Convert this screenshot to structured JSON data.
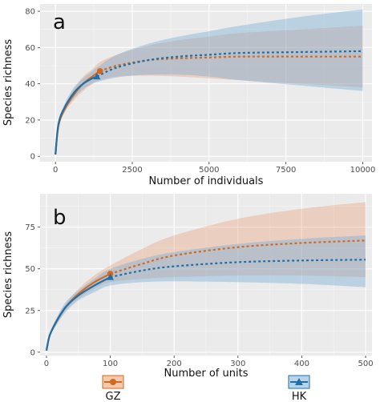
{
  "chart_data": [
    {
      "panel": "a",
      "type": "line",
      "xlabel": "Number of individuals",
      "ylabel": "Species richness",
      "xlim": [
        -500,
        10300
      ],
      "ylim": [
        -3,
        84
      ],
      "x_ticks": [
        0,
        2500,
        5000,
        7500,
        10000
      ],
      "y_ticks": [
        0,
        20,
        40,
        60,
        80
      ],
      "grid": true,
      "series": [
        {
          "name": "GZ",
          "color": "#D2691E",
          "observed_end_x": 1450,
          "observed_end_y": 47,
          "points": [
            [
              0,
              1
            ],
            [
              100,
              17
            ],
            [
              300,
              26
            ],
            [
              600,
              34
            ],
            [
              900,
              40
            ],
            [
              1200,
              44
            ],
            [
              1450,
              47
            ],
            [
              2000,
              50
            ],
            [
              3000,
              53
            ],
            [
              4000,
              54
            ],
            [
              5000,
              54.5
            ],
            [
              6000,
              55
            ],
            [
              8000,
              55
            ],
            [
              10000,
              55
            ]
          ],
          "ci_lower": [
            [
              0,
              1
            ],
            [
              100,
              16
            ],
            [
              300,
              24
            ],
            [
              600,
              31
            ],
            [
              900,
              36
            ],
            [
              1200,
              40
            ],
            [
              1450,
              42
            ],
            [
              2000,
              44
            ],
            [
              3000,
              44.5
            ],
            [
              4000,
              44
            ],
            [
              5000,
              43
            ],
            [
              6000,
              42
            ],
            [
              8000,
              40
            ],
            [
              10000,
              38
            ]
          ],
          "ci_upper": [
            [
              0,
              1
            ],
            [
              100,
              18
            ],
            [
              300,
              28
            ],
            [
              600,
              37
            ],
            [
              900,
              44
            ],
            [
              1200,
              48
            ],
            [
              1450,
              52
            ],
            [
              2000,
              56
            ],
            [
              3000,
              61
            ],
            [
              4000,
              64
            ],
            [
              5000,
              66
            ],
            [
              6000,
              68
            ],
            [
              8000,
              70
            ],
            [
              10000,
              72
            ]
          ]
        },
        {
          "name": "HK",
          "color": "#1F6FA8",
          "observed_end_x": 1350,
          "observed_end_y": 44,
          "points": [
            [
              0,
              1
            ],
            [
              100,
              18
            ],
            [
              300,
              27
            ],
            [
              600,
              35
            ],
            [
              900,
              40
            ],
            [
              1200,
              43
            ],
            [
              1350,
              44
            ],
            [
              2000,
              49
            ],
            [
              3000,
              53
            ],
            [
              4000,
              55
            ],
            [
              5000,
              56
            ],
            [
              6000,
              57
            ],
            [
              8000,
              57.5
            ],
            [
              10000,
              58
            ]
          ],
          "ci_lower": [
            [
              0,
              1
            ],
            [
              100,
              17
            ],
            [
              300,
              25
            ],
            [
              600,
              32
            ],
            [
              900,
              37
            ],
            [
              1200,
              40
            ],
            [
              1350,
              41
            ],
            [
              2000,
              43.5
            ],
            [
              3000,
              45
            ],
            [
              4000,
              45
            ],
            [
              5000,
              44
            ],
            [
              6000,
              42
            ],
            [
              8000,
              39
            ],
            [
              10000,
              36
            ]
          ],
          "ci_upper": [
            [
              0,
              1
            ],
            [
              100,
              19
            ],
            [
              300,
              29
            ],
            [
              600,
              38
            ],
            [
              900,
              43
            ],
            [
              1200,
              47
            ],
            [
              1350,
              49
            ],
            [
              2000,
              56
            ],
            [
              3000,
              62
            ],
            [
              4000,
              66
            ],
            [
              5000,
              69
            ],
            [
              6000,
              72
            ],
            [
              8000,
              77
            ],
            [
              10000,
              81
            ]
          ]
        }
      ]
    },
    {
      "panel": "b",
      "type": "line",
      "xlabel": "Number of units",
      "ylabel": "Species richness",
      "xlim": [
        -10,
        510
      ],
      "ylim": [
        -2,
        95
      ],
      "x_ticks": [
        0,
        100,
        200,
        300,
        400,
        500
      ],
      "y_ticks": [
        0,
        25,
        50,
        75
      ],
      "grid": true,
      "series": [
        {
          "name": "GZ",
          "color": "#D2691E",
          "observed_end_x": 100,
          "observed_end_y": 47,
          "points": [
            [
              0,
              1
            ],
            [
              5,
              10
            ],
            [
              15,
              18
            ],
            [
              30,
              27
            ],
            [
              50,
              35
            ],
            [
              75,
              42
            ],
            [
              100,
              47
            ],
            [
              150,
              53
            ],
            [
              200,
              58
            ],
            [
              300,
              63
            ],
            [
              400,
              65.5
            ],
            [
              500,
              67
            ]
          ],
          "ci_lower": [
            [
              0,
              1
            ],
            [
              5,
              9
            ],
            [
              15,
              16
            ],
            [
              30,
              25
            ],
            [
              50,
              32
            ],
            [
              75,
              38
            ],
            [
              100,
              42
            ],
            [
              150,
              44
            ],
            [
              200,
              45
            ],
            [
              300,
              46
            ],
            [
              400,
              46
            ],
            [
              500,
              45
            ]
          ],
          "ci_upper": [
            [
              0,
              1
            ],
            [
              5,
              11
            ],
            [
              15,
              20
            ],
            [
              30,
              29
            ],
            [
              50,
              38
            ],
            [
              75,
              46
            ],
            [
              100,
              52
            ],
            [
              150,
              62
            ],
            [
              200,
              70
            ],
            [
              300,
              80
            ],
            [
              400,
              86
            ],
            [
              500,
              90
            ]
          ]
        },
        {
          "name": "HK",
          "color": "#1F6FA8",
          "observed_end_x": 100,
          "observed_end_y": 45,
          "points": [
            [
              0,
              1
            ],
            [
              5,
              10
            ],
            [
              15,
              18
            ],
            [
              30,
              27
            ],
            [
              50,
              34
            ],
            [
              75,
              40
            ],
            [
              100,
              45
            ],
            [
              150,
              49
            ],
            [
              200,
              51.5
            ],
            [
              300,
              54
            ],
            [
              400,
              55
            ],
            [
              500,
              55.5
            ]
          ],
          "ci_lower": [
            [
              0,
              1
            ],
            [
              5,
              9
            ],
            [
              15,
              16
            ],
            [
              30,
              24
            ],
            [
              50,
              31
            ],
            [
              75,
              36
            ],
            [
              100,
              40
            ],
            [
              150,
              42
            ],
            [
              200,
              42.5
            ],
            [
              300,
              42
            ],
            [
              400,
              41
            ],
            [
              500,
              39
            ]
          ],
          "ci_upper": [
            [
              0,
              1
            ],
            [
              5,
              11
            ],
            [
              15,
              20
            ],
            [
              30,
              30
            ],
            [
              50,
              37
            ],
            [
              75,
              44
            ],
            [
              100,
              50
            ],
            [
              150,
              56
            ],
            [
              200,
              60
            ],
            [
              300,
              65
            ],
            [
              400,
              68
            ],
            [
              500,
              70
            ]
          ]
        }
      ]
    }
  ],
  "legend": {
    "items": [
      {
        "label": "GZ",
        "color": "#D2691E",
        "marker": "circle"
      },
      {
        "label": "HK",
        "color": "#1F6FA8",
        "marker": "triangle"
      }
    ]
  }
}
